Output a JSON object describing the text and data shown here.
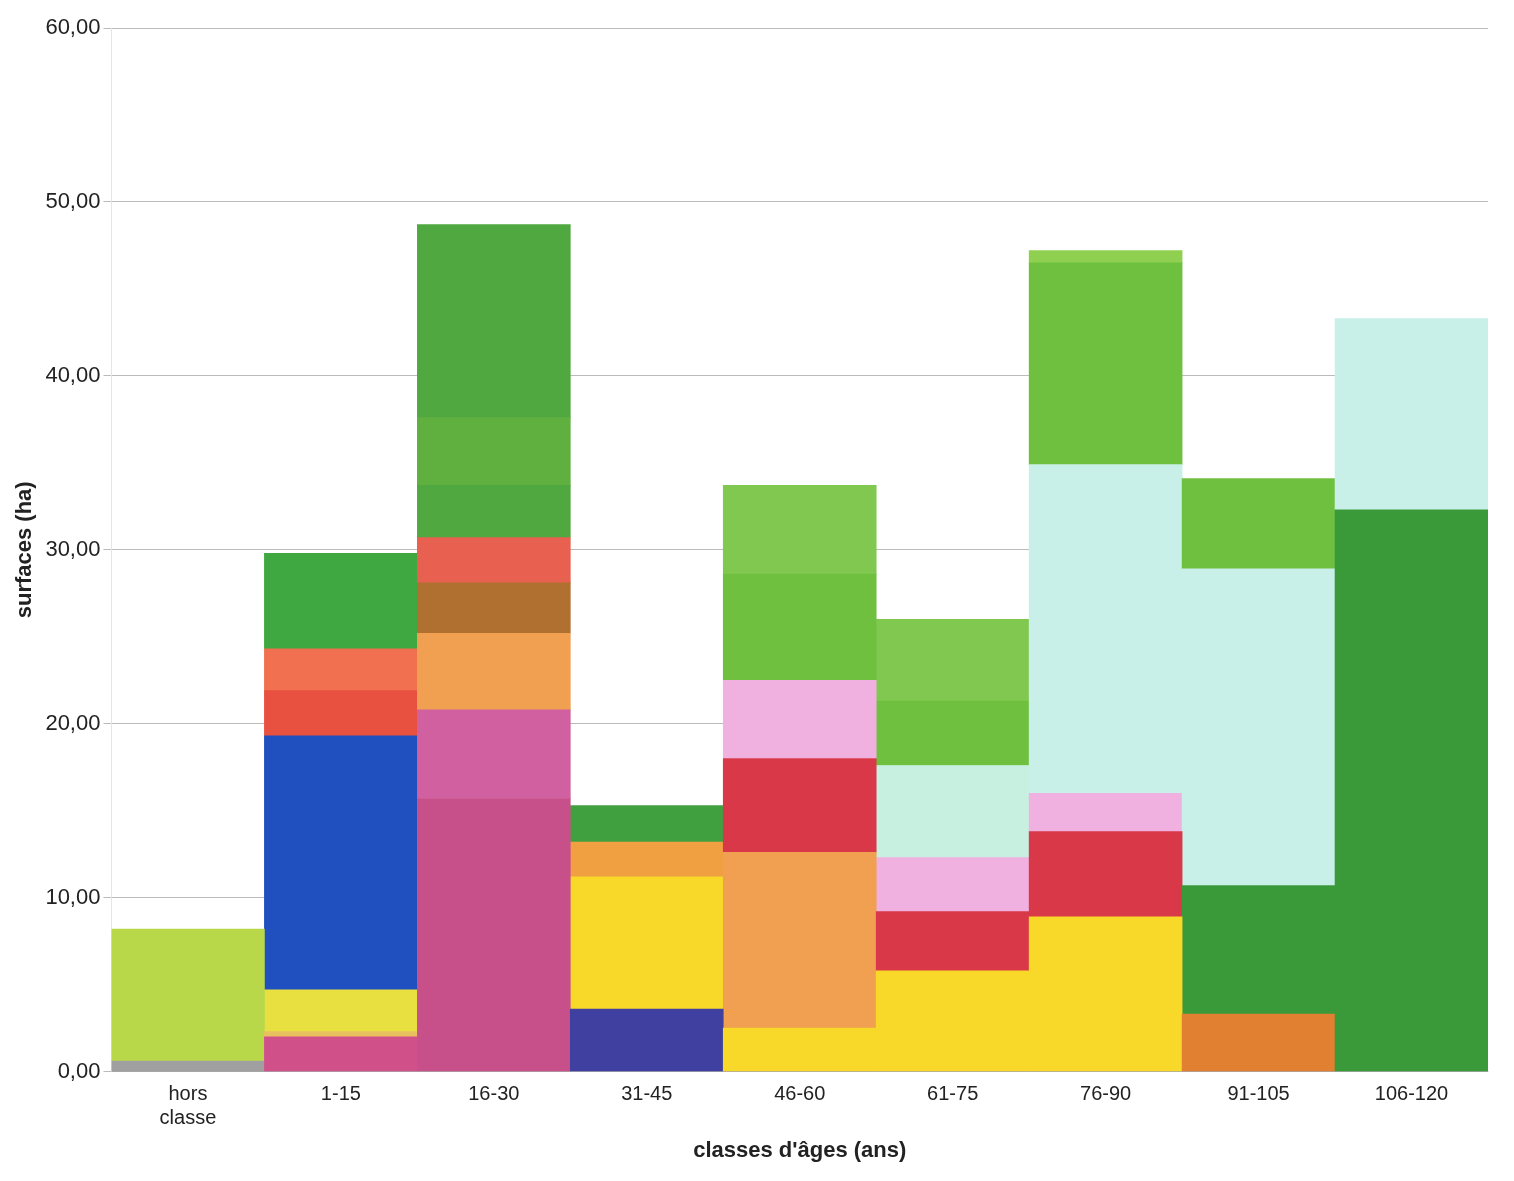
{
  "chart_data": {
    "type": "bar",
    "stacked": true,
    "xlabel": "classes d'âges (ans)",
    "ylabel": "surfaces (ha)",
    "categories": [
      "hors\nclasse",
      "1-15",
      "16-30",
      "31-45",
      "46-60",
      "61-75",
      "76-90",
      "91-105",
      "106-120"
    ],
    "ylim": [
      0,
      60
    ],
    "yticks": [
      {
        "value": 0,
        "label": "0,00"
      },
      {
        "value": 10,
        "label": "10,00"
      },
      {
        "value": 20,
        "label": "20,00"
      },
      {
        "value": 30,
        "label": "30,00"
      },
      {
        "value": 40,
        "label": "40,00"
      },
      {
        "value": 50,
        "label": "50,00"
      },
      {
        "value": 60,
        "label": "60,00"
      }
    ],
    "grid": "y",
    "legend": false,
    "series": [
      {
        "values": [
          0.6,
          2.0,
          15.7,
          3.6,
          2.5,
          5.8,
          8.9,
          3.3,
          32.3
        ],
        "colors": [
          "#a0a0a0",
          "#d0508a",
          "#c8508a",
          "#4040a0",
          "#f8d828",
          "#f8d828",
          "#f8d828",
          "#e08030",
          "#3a9a3a"
        ]
      },
      {
        "values": [
          7.6,
          0.3,
          5.1,
          7.6,
          10.1,
          3.4,
          4.9,
          7.4,
          11.0
        ],
        "colors": [
          "#b8d84a",
          "#e8c060",
          "#d060a0",
          "#f8d828",
          "#f0a050",
          "#d83848",
          "#d83848",
          "#3a9a3a",
          "#c8f0e8"
        ]
      },
      {
        "values": [
          null,
          2.4,
          4.4,
          2.0,
          5.4,
          3.1,
          2.2,
          18.2,
          null
        ],
        "colors": [
          null,
          "#e8e040",
          "#f0a050",
          "#f0a040",
          "#d83848",
          "#f0b0e0",
          "#f0b0e0",
          "#c8f0e8",
          null
        ]
      },
      {
        "values": [
          null,
          14.6,
          2.9,
          2.1,
          4.5,
          5.3,
          18.9,
          5.2,
          null
        ],
        "colors": [
          null,
          "#2050c0",
          "#b07030",
          "#40a040",
          "#f0b0e0",
          "#c8f0e0",
          "#c8f0e8",
          "#70c040",
          null
        ]
      },
      {
        "values": [
          null,
          2.6,
          2.6,
          null,
          6.1,
          3.7,
          11.6,
          null,
          null
        ],
        "colors": [
          null,
          "#e85040",
          "#e86050",
          null,
          "#70c040",
          "#70c040",
          "#70c040",
          null,
          null
        ]
      },
      {
        "values": [
          null,
          2.4,
          3.0,
          null,
          5.1,
          4.7,
          0.7,
          null,
          null
        ],
        "colors": [
          null,
          "#f07050",
          "#50a840",
          null,
          "#80c850",
          "#80c850",
          "#90d050",
          null,
          null
        ]
      },
      {
        "values": [
          null,
          5.5,
          3.9,
          null,
          null,
          null,
          null,
          null,
          null
        ],
        "colors": [
          null,
          "#40a840",
          "#60b040",
          null,
          null,
          null,
          null,
          null,
          null
        ]
      },
      {
        "values": [
          null,
          null,
          11.1,
          null,
          null,
          null,
          null,
          null,
          null
        ],
        "colors": [
          null,
          null,
          "#50a840",
          null,
          null,
          null,
          null,
          null,
          null
        ]
      }
    ]
  }
}
